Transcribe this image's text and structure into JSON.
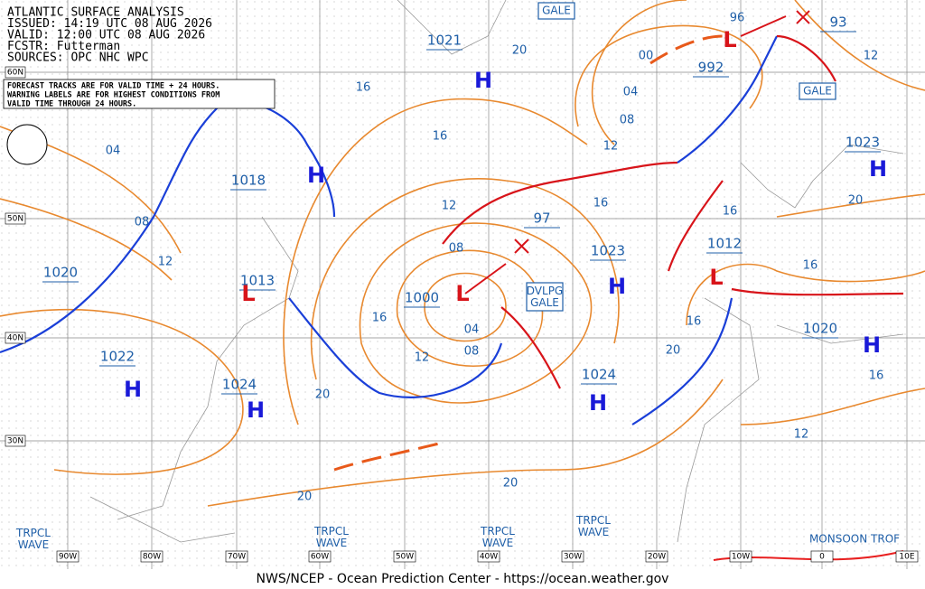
{
  "header": {
    "lines": [
      "ATLANTIC SURFACE ANALYSIS",
      "ISSUED: 14:19 UTC 08 AUG 2026",
      "VALID: 12:00 UTC 08 AUG 2026",
      "FCSTR:  Futterman",
      "SOURCES: OPC NHC WPC"
    ],
    "notice": [
      "FORECAST TRACKS ARE FOR VALID TIME + 24 HOURS.",
      "WARNING LABELS ARE FOR HIGHEST CONDITIONS FROM",
      "VALID TIME THROUGH 24 HOURS."
    ]
  },
  "pressure_centers": [
    {
      "kind": "H",
      "value": 1021
    },
    {
      "kind": "L",
      "value": 992
    },
    {
      "value": 93
    },
    {
      "kind": "H",
      "value": 1023
    },
    {
      "kind": "H",
      "value": 1018
    },
    {
      "value": 97
    },
    {
      "value": 1020
    },
    {
      "kind": "L",
      "value": 1013
    },
    {
      "kind": "L",
      "value": 1000
    },
    {
      "kind": "H",
      "value": 1023
    },
    {
      "kind": "L",
      "value": 1012
    },
    {
      "kind": "H",
      "value": 1020
    },
    {
      "kind": "H",
      "value": 1022
    },
    {
      "kind": "H",
      "value": 1024
    },
    {
      "kind": "H",
      "value": 1024
    }
  ],
  "isobar_labels": [
    "20",
    "16",
    "16",
    "12",
    "08",
    "04",
    "08",
    "12",
    "16",
    "20",
    "04",
    "08",
    "12",
    "20",
    "20",
    "16",
    "12",
    "08",
    "04",
    "00",
    "96",
    "12",
    "16",
    "20",
    "16",
    "16",
    "20",
    "12",
    "16"
  ],
  "latitudes": [
    "60N",
    "50N",
    "40N",
    "30N"
  ],
  "longitudes": [
    "90W",
    "80W",
    "70W",
    "60W",
    "50W",
    "40W",
    "30W",
    "20W",
    "10W",
    "0",
    "10E"
  ],
  "warnings": [
    "GALE",
    "GALE",
    "DVLPG GALE"
  ],
  "waves": [
    "TRPCL WAVE",
    "TRPCL WAVE",
    "TRPCL WAVE",
    "TRPCL WAVE"
  ],
  "monsoon": "MONSOON TROF",
  "footer": "NWS/NCEP - Ocean Prediction Center - https://ocean.weather.gov"
}
